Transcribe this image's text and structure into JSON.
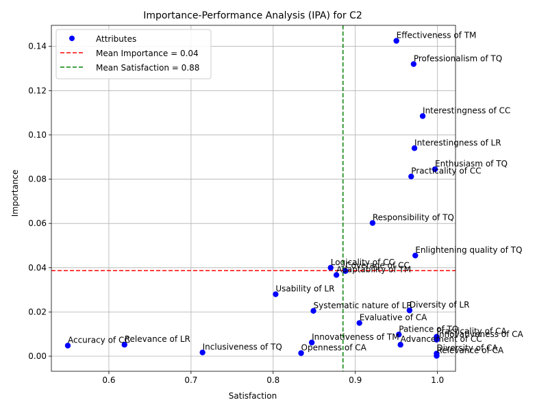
{
  "chart_data": {
    "type": "scatter",
    "title": "Importance-Performance Analysis (IPA) for C2",
    "xlabel": "Satisfaction",
    "ylabel": "Importance",
    "xlim": [
      0.53,
      1.022
    ],
    "ylim": [
      -0.0068,
      0.1495
    ],
    "xticks": [
      0.6,
      0.7,
      0.8,
      0.9,
      1.0
    ],
    "xtick_labels": [
      "0.6",
      "0.7",
      "0.8",
      "0.9",
      "1.0"
    ],
    "yticks": [
      0.0,
      0.02,
      0.04,
      0.06,
      0.08,
      0.1,
      0.12,
      0.14
    ],
    "ytick_labels": [
      "0.00",
      "0.02",
      "0.04",
      "0.06",
      "0.08",
      "0.10",
      "0.12",
      "0.14"
    ],
    "grid": true,
    "legend_position": "top-left",
    "legend": [
      {
        "label": "Attributes",
        "kind": "marker",
        "color": "#0000ff"
      },
      {
        "label": "Mean Importance = 0.04",
        "kind": "dashed-line",
        "color": "#ff0000"
      },
      {
        "label": "Mean Satisfaction = 0.88",
        "kind": "dashed-line",
        "color": "#008000"
      }
    ],
    "mean_importance": 0.0387,
    "mean_satisfaction": 0.885,
    "series": [
      {
        "name": "Attributes",
        "color": "#0000ff",
        "points": [
          {
            "label": "Effectiveness of TM",
            "x": 0.95,
            "y": 0.1425
          },
          {
            "label": "Professionalism of TQ",
            "x": 0.971,
            "y": 0.132
          },
          {
            "label": "Interestingness of CC",
            "x": 0.982,
            "y": 0.1085
          },
          {
            "label": "Interestingness of LR",
            "x": 0.972,
            "y": 0.094
          },
          {
            "label": "Enthusiasm of TQ",
            "x": 0.997,
            "y": 0.0845
          },
          {
            "label": "Practicality of CC",
            "x": 0.968,
            "y": 0.0812
          },
          {
            "label": "Responsibility of TQ",
            "x": 0.921,
            "y": 0.0602
          },
          {
            "label": "Enlightening quality of TQ",
            "x": 0.973,
            "y": 0.0455
          },
          {
            "label": "Logicality of CC",
            "x": 0.87,
            "y": 0.04
          },
          {
            "label": "Coverage of CC",
            "x": 0.888,
            "y": 0.0385
          },
          {
            "label": "Adaptability of TM",
            "x": 0.877,
            "y": 0.0367
          },
          {
            "label": "Usability of LR",
            "x": 0.803,
            "y": 0.028
          },
          {
            "label": "Systematic nature of LR",
            "x": 0.849,
            "y": 0.0205
          },
          {
            "label": "Diversity of LR",
            "x": 0.966,
            "y": 0.0207
          },
          {
            "label": "Evaluative of CA",
            "x": 0.905,
            "y": 0.015
          },
          {
            "label": "Patience of TQ",
            "x": 0.953,
            "y": 0.0098
          },
          {
            "label": "Practicality of CA",
            "x": 0.999,
            "y": 0.0088
          },
          {
            "label": "Innovativeness of CA",
            "x": 0.999,
            "y": 0.0075
          },
          {
            "label": "Innovativeness of TM",
            "x": 0.847,
            "y": 0.0062
          },
          {
            "label": "Advancement of CC",
            "x": 0.955,
            "y": 0.0052
          },
          {
            "label": "Accuracy of CC",
            "x": 0.55,
            "y": 0.0048
          },
          {
            "label": "Relevance of LR",
            "x": 0.619,
            "y": 0.0052
          },
          {
            "label": "Inclusiveness of TQ",
            "x": 0.714,
            "y": 0.0017
          },
          {
            "label": "Openness of CA",
            "x": 0.834,
            "y": 0.0014
          },
          {
            "label": "Diversity of CA",
            "x": 0.999,
            "y": 0.0012
          },
          {
            "label": "Relevance of CA",
            "x": 0.999,
            "y": 0.0002
          }
        ]
      }
    ]
  }
}
